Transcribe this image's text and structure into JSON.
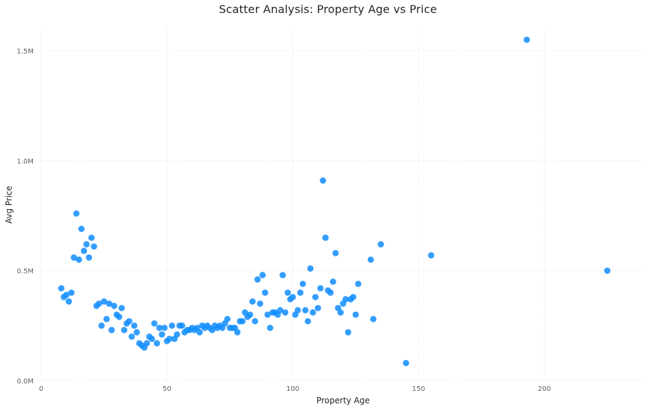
{
  "chart_data": {
    "type": "scatter",
    "title": "Scatter Analysis: Property Age vs Price",
    "xlabel": "Property Age",
    "ylabel": "Avg Price",
    "xlim": [
      0,
      240
    ],
    "ylim": [
      0,
      1600000
    ],
    "x_ticks": [
      0,
      50,
      100,
      150,
      200
    ],
    "x_tick_labels": [
      "0",
      "50",
      "100",
      "150",
      "200"
    ],
    "y_ticks": [
      0,
      500000,
      1000000,
      1500000
    ],
    "y_tick_labels": [
      "0.0M",
      "0.5M",
      "1.0M",
      "1.5M"
    ],
    "grid": true,
    "point_color": "#118dff",
    "points": [
      [
        8,
        420000
      ],
      [
        9,
        380000
      ],
      [
        10,
        390000
      ],
      [
        11,
        360000
      ],
      [
        12,
        400000
      ],
      [
        13,
        560000
      ],
      [
        14,
        760000
      ],
      [
        15,
        550000
      ],
      [
        16,
        690000
      ],
      [
        17,
        590000
      ],
      [
        18,
        620000
      ],
      [
        19,
        560000
      ],
      [
        20,
        650000
      ],
      [
        21,
        610000
      ],
      [
        22,
        340000
      ],
      [
        23,
        350000
      ],
      [
        24,
        250000
      ],
      [
        25,
        360000
      ],
      [
        26,
        280000
      ],
      [
        27,
        350000
      ],
      [
        28,
        230000
      ],
      [
        29,
        340000
      ],
      [
        30,
        300000
      ],
      [
        31,
        290000
      ],
      [
        32,
        330000
      ],
      [
        33,
        230000
      ],
      [
        34,
        260000
      ],
      [
        35,
        270000
      ],
      [
        36,
        200000
      ],
      [
        37,
        250000
      ],
      [
        38,
        220000
      ],
      [
        39,
        170000
      ],
      [
        40,
        160000
      ],
      [
        41,
        150000
      ],
      [
        42,
        170000
      ],
      [
        43,
        200000
      ],
      [
        44,
        190000
      ],
      [
        45,
        260000
      ],
      [
        46,
        170000
      ],
      [
        47,
        240000
      ],
      [
        48,
        210000
      ],
      [
        49,
        240000
      ],
      [
        50,
        180000
      ],
      [
        51,
        190000
      ],
      [
        52,
        250000
      ],
      [
        53,
        190000
      ],
      [
        54,
        210000
      ],
      [
        55,
        250000
      ],
      [
        56,
        250000
      ],
      [
        57,
        220000
      ],
      [
        58,
        230000
      ],
      [
        59,
        230000
      ],
      [
        60,
        240000
      ],
      [
        61,
        230000
      ],
      [
        62,
        240000
      ],
      [
        63,
        220000
      ],
      [
        64,
        250000
      ],
      [
        65,
        240000
      ],
      [
        66,
        250000
      ],
      [
        67,
        240000
      ],
      [
        68,
        230000
      ],
      [
        69,
        250000
      ],
      [
        70,
        240000
      ],
      [
        71,
        250000
      ],
      [
        72,
        240000
      ],
      [
        73,
        260000
      ],
      [
        74,
        280000
      ],
      [
        75,
        240000
      ],
      [
        76,
        240000
      ],
      [
        77,
        240000
      ],
      [
        78,
        220000
      ],
      [
        79,
        270000
      ],
      [
        80,
        270000
      ],
      [
        81,
        310000
      ],
      [
        82,
        290000
      ],
      [
        83,
        300000
      ],
      [
        84,
        360000
      ],
      [
        85,
        270000
      ],
      [
        86,
        460000
      ],
      [
        87,
        350000
      ],
      [
        88,
        480000
      ],
      [
        89,
        400000
      ],
      [
        90,
        300000
      ],
      [
        91,
        240000
      ],
      [
        92,
        310000
      ],
      [
        93,
        310000
      ],
      [
        94,
        300000
      ],
      [
        95,
        320000
      ],
      [
        96,
        480000
      ],
      [
        97,
        310000
      ],
      [
        98,
        400000
      ],
      [
        99,
        370000
      ],
      [
        100,
        380000
      ],
      [
        101,
        300000
      ],
      [
        102,
        320000
      ],
      [
        103,
        400000
      ],
      [
        104,
        440000
      ],
      [
        105,
        320000
      ],
      [
        106,
        270000
      ],
      [
        107,
        510000
      ],
      [
        108,
        310000
      ],
      [
        109,
        380000
      ],
      [
        110,
        330000
      ],
      [
        111,
        420000
      ],
      [
        112,
        910000
      ],
      [
        113,
        650000
      ],
      [
        114,
        410000
      ],
      [
        115,
        400000
      ],
      [
        116,
        450000
      ],
      [
        117,
        580000
      ],
      [
        118,
        330000
      ],
      [
        119,
        310000
      ],
      [
        120,
        350000
      ],
      [
        121,
        370000
      ],
      [
        122,
        220000
      ],
      [
        123,
        370000
      ],
      [
        124,
        380000
      ],
      [
        125,
        300000
      ],
      [
        126,
        440000
      ],
      [
        131,
        550000
      ],
      [
        132,
        280000
      ],
      [
        135,
        620000
      ],
      [
        145,
        80000
      ],
      [
        155,
        570000
      ],
      [
        193,
        1550000
      ],
      [
        225,
        500000
      ]
    ]
  }
}
